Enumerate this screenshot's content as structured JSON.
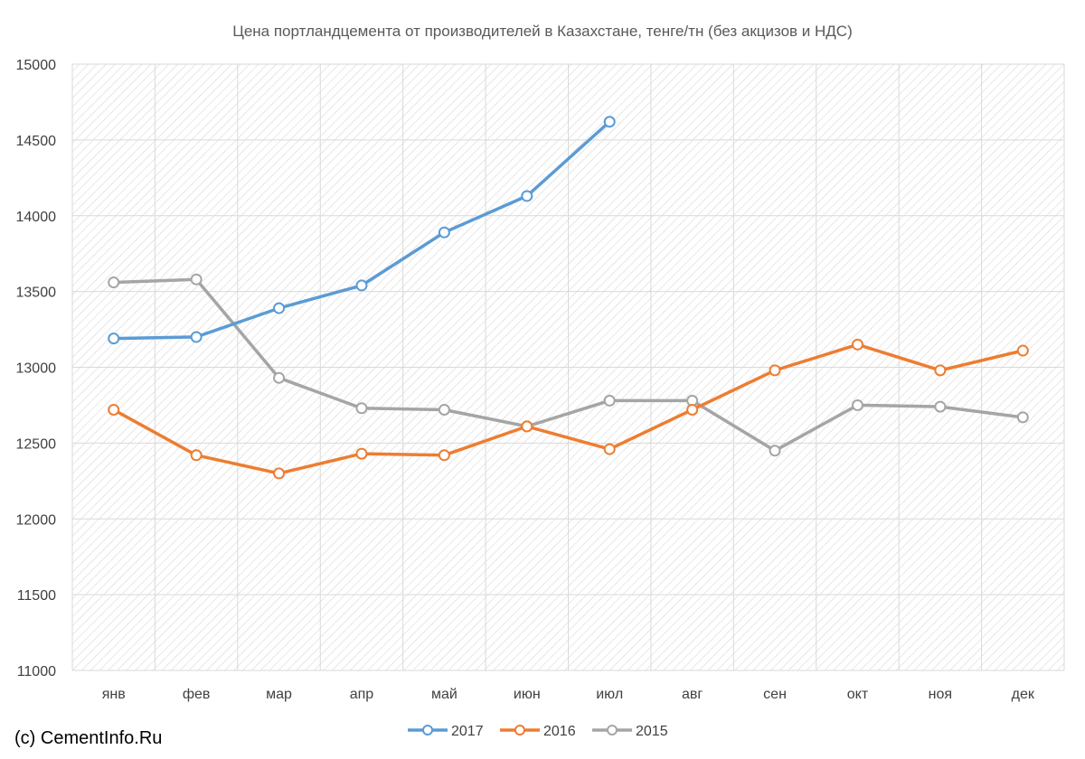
{
  "copyright": "(c) CementInfo.Ru",
  "colors": {
    "background": "#ffffff",
    "gridline": "#d9d9d9",
    "hatch": "#d6d6d6",
    "text": "#595959",
    "axis_text": "#404040"
  },
  "chart_data": {
    "type": "line",
    "title": "Цена портландцемента от производителей  в Казахстане, тенге/тн (без акцизов и НДС)",
    "xlabel": "",
    "ylabel": "",
    "categories": [
      "янв",
      "фев",
      "мар",
      "апр",
      "май",
      "июн",
      "июл",
      "авг",
      "сен",
      "окт",
      "ноя",
      "дек"
    ],
    "ylim": [
      11000,
      15000
    ],
    "yticks": [
      11000,
      11500,
      12000,
      12500,
      13000,
      13500,
      14000,
      14500,
      15000
    ],
    "grid": true,
    "legend_position": "bottom",
    "series": [
      {
        "name": "2017",
        "color": "#5b9bd5",
        "values": [
          13190,
          13200,
          13390,
          13540,
          13890,
          14130,
          14620,
          null,
          null,
          null,
          null,
          null
        ]
      },
      {
        "name": "2016",
        "color": "#ed7d31",
        "values": [
          12720,
          12420,
          12300,
          12430,
          12420,
          12610,
          12460,
          12720,
          12980,
          13150,
          12980,
          13110
        ]
      },
      {
        "name": "2015",
        "color": "#a5a5a5",
        "values": [
          13560,
          13580,
          12930,
          12730,
          12720,
          12610,
          12780,
          12780,
          12450,
          12750,
          12740,
          12670
        ]
      }
    ]
  }
}
